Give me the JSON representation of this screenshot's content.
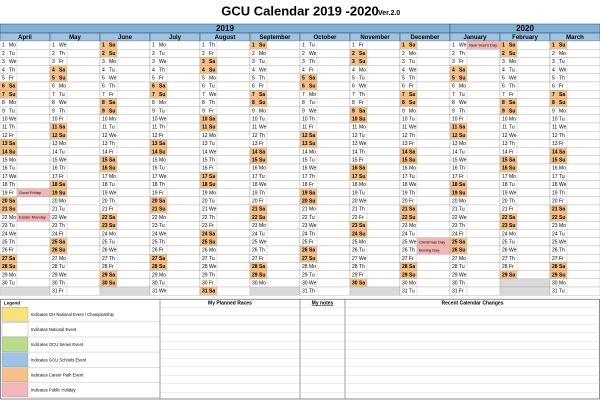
{
  "header": {
    "title": "GCU Calendar 2019 -2020",
    "version": "Ver.2.0"
  },
  "years": [
    {
      "label": "2019",
      "months": 9
    },
    {
      "label": "2020",
      "months": 3
    }
  ],
  "weekdays": [
    "Mo",
    "Tu",
    "We",
    "Th",
    "Fr",
    "Sa",
    "Su"
  ],
  "day_numbers": [
    1,
    2,
    3,
    4,
    5,
    6,
    7,
    8,
    9,
    10,
    11,
    12,
    13,
    14,
    15,
    16,
    17,
    18,
    19,
    20,
    21,
    22,
    23,
    24,
    25,
    26,
    27,
    28,
    29,
    30,
    31
  ],
  "months": [
    {
      "name": "April",
      "start": 0,
      "days": 30
    },
    {
      "name": "May",
      "start": 2,
      "days": 31
    },
    {
      "name": "June",
      "start": 5,
      "days": 30
    },
    {
      "name": "July",
      "start": 0,
      "days": 31
    },
    {
      "name": "August",
      "start": 3,
      "days": 31
    },
    {
      "name": "September",
      "start": 6,
      "days": 30
    },
    {
      "name": "October",
      "start": 1,
      "days": 31
    },
    {
      "name": "November",
      "start": 4,
      "days": 30
    },
    {
      "name": "December",
      "start": 6,
      "days": 31
    },
    {
      "name": "January",
      "start": 2,
      "days": 31
    },
    {
      "name": "February",
      "start": 5,
      "days": 29
    },
    {
      "name": "March",
      "start": 6,
      "days": 31
    }
  ],
  "events": [
    {
      "month": "April",
      "day": 19,
      "text": "Good Friday",
      "color": "#f4b6b6"
    },
    {
      "month": "April",
      "day": 22,
      "text": "Easter Monday",
      "color": "#f4b6b6"
    },
    {
      "month": "December",
      "day": 25,
      "text": "Christmas Day",
      "color": "#f4b6b6"
    },
    {
      "month": "December",
      "day": 26,
      "text": "Boxing Day",
      "color": "#f4b6b6"
    },
    {
      "month": "January",
      "day": 1,
      "text": "New Year's Day",
      "color": "#f4b6b6"
    }
  ],
  "legend": {
    "title": "Legend",
    "items": [
      {
        "text": "Indicates GH National Event / Championship",
        "color": "#f9e27a"
      },
      {
        "text": "Indicates National Event",
        "color": "#ffffff"
      },
      {
        "text": "Indicates GCU Series Event",
        "color": "#b9dc8a"
      },
      {
        "text": "Indicates GCU Schools Event",
        "color": "#9dc3e6"
      },
      {
        "text": "Indicates Career Path Event",
        "color": "#f6c189"
      },
      {
        "text": "Indicates Public Holiday",
        "color": "#f4b6b6"
      }
    ]
  },
  "sections": [
    "My Planned Races",
    "My notes",
    "Recent Calendar Changes"
  ]
}
